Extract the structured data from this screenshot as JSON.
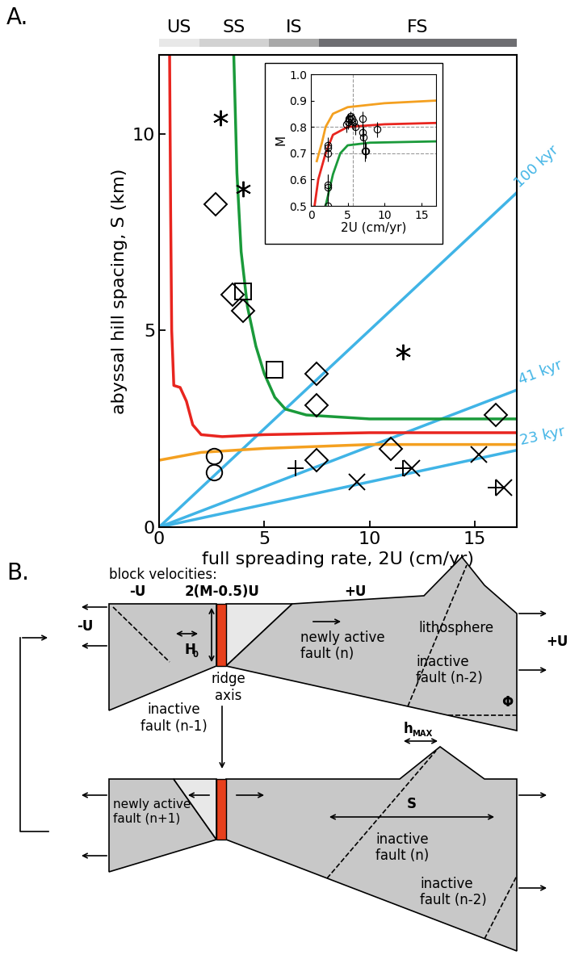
{
  "panel_labels": [
    "A.",
    "B."
  ],
  "chart_data": [
    {
      "type": "scatter",
      "xlabel": "full spreading rate, 2U (cm/yr)",
      "ylabel": "abyssal hill spacing, S (km)",
      "xlim": [
        0,
        17
      ],
      "ylim": [
        0,
        12
      ],
      "xticks": [
        0,
        5,
        10,
        15
      ],
      "yticks": [
        0,
        5,
        10
      ],
      "spreading_regimes": [
        {
          "label": "US",
          "range": [
            0,
            1.9
          ],
          "color": "#e8e8e8"
        },
        {
          "label": "SS",
          "range": [
            1.9,
            5.2
          ],
          "color": "#d2d2d2"
        },
        {
          "label": "IS",
          "range": [
            5.2,
            7.6
          ],
          "color": "#a9a9a9"
        },
        {
          "label": "FS",
          "range": [
            7.6,
            17
          ],
          "color": "#6e6e72"
        }
      ],
      "series": [
        {
          "type": "line",
          "color": "#40b4e6",
          "line_style": "solid",
          "label": "100 kyr",
          "x": [
            0,
            17
          ],
          "values": [
            0,
            8.5
          ]
        },
        {
          "type": "line",
          "color": "#40b4e6",
          "line_style": "solid",
          "label": "41 kyr",
          "x": [
            0,
            17
          ],
          "values": [
            0,
            3.485
          ]
        },
        {
          "type": "line",
          "color": "#40b4e6",
          "line_style": "solid",
          "label": "23 kyr",
          "x": [
            0,
            17
          ],
          "values": [
            0,
            1.955
          ]
        },
        {
          "type": "line",
          "color": "#f4a020",
          "line_style": "solid",
          "x": [
            0,
            2,
            5,
            10,
            17
          ],
          "values": [
            1.7,
            1.9,
            2.0,
            2.1,
            2.1
          ]
        },
        {
          "type": "line",
          "color": "#e8251f",
          "line_style": "solid",
          "x": [
            0.5,
            0.55,
            0.6,
            0.7,
            1.0,
            1.3,
            1.6,
            2,
            3,
            5,
            10,
            17
          ],
          "values": [
            12,
            8,
            5,
            3.6,
            3.55,
            3.2,
            2.6,
            2.35,
            2.3,
            2.35,
            2.4,
            2.4
          ]
        },
        {
          "type": "line",
          "color": "#1a9a3a",
          "line_style": "solid",
          "x": [
            3.55,
            3.7,
            3.9,
            4.2,
            4.6,
            5,
            5.5,
            6,
            7,
            10,
            17
          ],
          "values": [
            12,
            9,
            7,
            5.6,
            4.6,
            3.9,
            3.3,
            3.0,
            2.85,
            2.75,
            2.75
          ]
        },
        {
          "type": "scatter",
          "marker": "asterisk",
          "color": "#000000",
          "x": [
            2.9,
            4.0,
            11.6
          ],
          "values": [
            10.4,
            8.6,
            4.45
          ]
        },
        {
          "type": "scatter",
          "marker": "diamond",
          "color": "#000000",
          "x": [
            2.7,
            3.5,
            4.0,
            7.5,
            7.5,
            7.5,
            11.0,
            16.0
          ],
          "values": [
            8.2,
            5.9,
            5.5,
            3.9,
            3.1,
            1.7,
            2.0,
            2.85
          ]
        },
        {
          "type": "scatter",
          "marker": "square",
          "color": "#000000",
          "x": [
            4.0,
            5.5
          ],
          "values": [
            6.0,
            4.0
          ]
        },
        {
          "type": "scatter",
          "marker": "circle",
          "color": "#000000",
          "x": [
            2.6,
            2.6
          ],
          "values": [
            1.8,
            1.4
          ]
        },
        {
          "type": "scatter",
          "marker": "plus",
          "color": "#000000",
          "x": [
            6.5,
            11.6,
            16.0
          ],
          "values": [
            1.5,
            1.5,
            1.0
          ]
        },
        {
          "type": "scatter",
          "marker": "x",
          "color": "#000000",
          "x": [
            9.4,
            12.0,
            15.2,
            16.4
          ],
          "values": [
            1.15,
            1.5,
            1.85,
            1.0
          ]
        }
      ]
    },
    {
      "type": "scatter",
      "xlabel": "2U (cm/yr)",
      "ylabel": "M",
      "xlim": [
        0,
        17
      ],
      "ylim": [
        0.5,
        1.0
      ],
      "xticks": [
        0,
        5,
        10,
        15
      ],
      "yticks": [
        0.5,
        0.6,
        0.7,
        0.8,
        0.9,
        1.0
      ],
      "reference_lines": {
        "x": [
          5.7
        ],
        "y": [
          0.7,
          0.8
        ],
        "color": "#999999",
        "line_style": "dashed"
      },
      "series": [
        {
          "type": "line",
          "color": "#f4a020",
          "line_style": "solid",
          "x": [
            0.8,
            1.5,
            2,
            3,
            5,
            10,
            17
          ],
          "values": [
            0.67,
            0.74,
            0.8,
            0.85,
            0.875,
            0.89,
            0.9
          ]
        },
        {
          "type": "line",
          "color": "#e8251f",
          "line_style": "solid",
          "x": [
            0.5,
            1,
            2,
            3,
            5,
            10,
            17
          ],
          "values": [
            0.5,
            0.6,
            0.7,
            0.77,
            0.8,
            0.81,
            0.815
          ]
        },
        {
          "type": "line",
          "color": "#1a9a3a",
          "line_style": "solid",
          "x": [
            2,
            3,
            4,
            5,
            8,
            17
          ],
          "values": [
            0.5,
            0.62,
            0.7,
            0.73,
            0.74,
            0.745
          ]
        },
        {
          "type": "scatter",
          "marker": "circle",
          "color": "#000000",
          "x": [
            2.3,
            2.3,
            2.3,
            2.3,
            2.3,
            2.3,
            4.8,
            5.0,
            5.2,
            5.4,
            5.6,
            5.8,
            6.0,
            7.0,
            7.0,
            7.1,
            7.4,
            7.5,
            9.0
          ],
          "values": [
            0.5,
            0.57,
            0.58,
            0.7,
            0.72,
            0.73,
            0.81,
            0.82,
            0.83,
            0.84,
            0.83,
            0.82,
            0.8,
            0.83,
            0.78,
            0.76,
            0.71,
            0.71,
            0.79
          ],
          "errors": [
            0.05,
            0.05,
            0.04,
            0.03,
            0.03,
            0.03,
            0.03,
            0.03,
            0.02,
            0.02,
            0.02,
            0.03,
            0.03,
            0.03,
            0.03,
            0.04,
            0.04,
            0.03,
            0.03
          ]
        }
      ]
    }
  ],
  "diagram": {
    "header": "block velocities:",
    "velocities": [
      "-U",
      "2(M-0.5)U",
      "+U"
    ],
    "outer_left": "-U",
    "outer_right": "+U",
    "thickness": {
      "base": "H",
      "sub": "0"
    },
    "ridge": "ridge\naxis",
    "upper": {
      "newly_active": "newly active\nfault (n)",
      "lithosphere": "lithosphere",
      "inactive_right": "inactive\nfault (n-2)",
      "inactive_left": "inactive\nfault (n-1)",
      "angle": "Φ"
    },
    "relief": {
      "base": "h",
      "sub": "MAX"
    },
    "lower": {
      "newly_active": "newly active\nfault (n+1)",
      "inactive_mid": "inactive\nfault (n)",
      "inactive_right": "inactive\nfault (n-2)",
      "spacing": "S"
    }
  }
}
